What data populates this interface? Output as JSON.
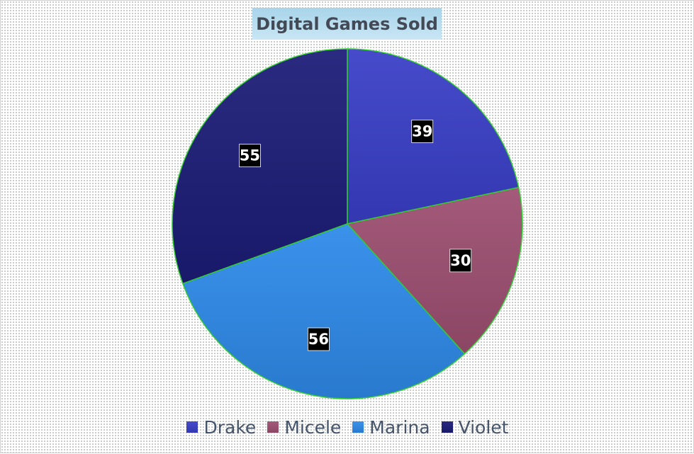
{
  "chart_data": {
    "type": "pie",
    "title": "Digital Games Sold",
    "categories": [
      "Drake",
      "Micele",
      "Marina",
      "Violet"
    ],
    "values": [
      39,
      30,
      56,
      55
    ],
    "colors": [
      "#3a3fc8",
      "#9e4f72",
      "#2f8bea",
      "#1c1c78"
    ],
    "slice_border_color": "#33cc33",
    "data_labels": true,
    "legend_position": "bottom"
  }
}
